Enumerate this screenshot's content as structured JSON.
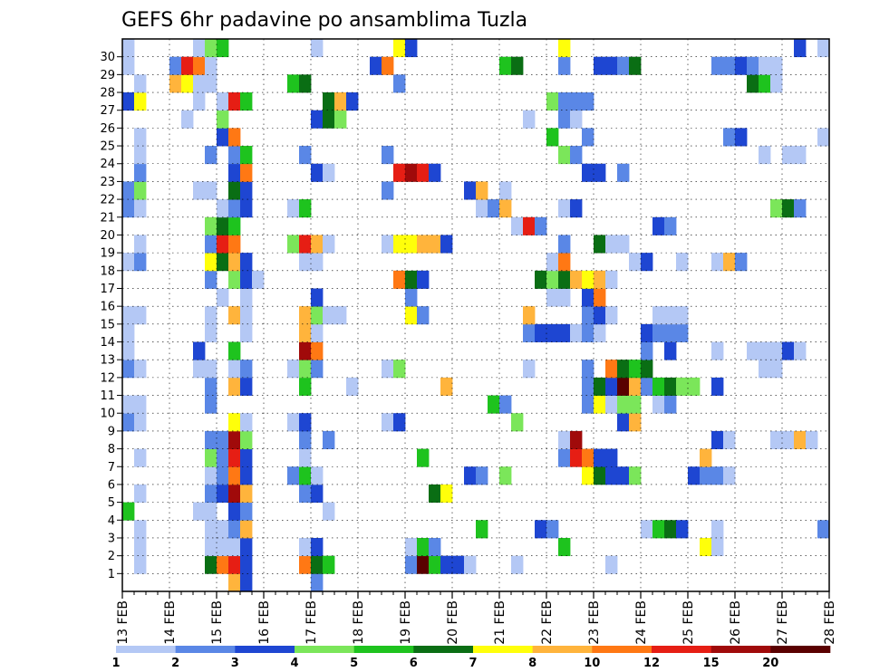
{
  "chart_data": {
    "type": "heatmap",
    "title": "GEFS 6hr padavine po ansamblima Tuzla",
    "xlabel": "",
    "ylabel": "",
    "x_tick_labels": [
      "13 FEB",
      "14 FEB",
      "15 FEB",
      "16 FEB",
      "17 FEB",
      "18 FEB",
      "19 FEB",
      "20 FEB",
      "21 FEB",
      "22 FEB",
      "23 FEB",
      "24 FEB",
      "25 FEB",
      "26 FEB",
      "27 FEB",
      "28 FEB"
    ],
    "x_steps_per_day": 4,
    "x_range_steps": [
      0,
      60
    ],
    "y_tick_labels": [
      1,
      2,
      3,
      4,
      5,
      6,
      7,
      8,
      9,
      10,
      11,
      12,
      13,
      14,
      15,
      16,
      17,
      18,
      19,
      20,
      21,
      22,
      23,
      24,
      25,
      26,
      27,
      28,
      29,
      30
    ],
    "grid": true,
    "colorbar": {
      "levels": [
        1,
        2,
        3,
        4,
        5,
        6,
        7,
        8,
        10,
        12,
        15,
        20
      ],
      "labels": [
        "1",
        "2",
        "3",
        "4",
        "5",
        "6",
        "7",
        "8",
        "10",
        "12",
        "15",
        "20"
      ],
      "colors": [
        "#b4c8f5",
        "#5a87e6",
        "#1e46d2",
        "#7be65a",
        "#1ec31e",
        "#0a6e14",
        "#ffff0a",
        "#ffb43c",
        "#ff7814",
        "#e61e14",
        "#a00a0a",
        "#5a0000"
      ]
    },
    "cells": [
      [
        1,
        "0 3:3 5:2 1 0 9:1 0 4:3 1 0 19:2 1 0 3:3 0 2:3 4:5 4:4 0 9:1 0 2:3 4:2 0 4:6 0 1:6 0 1:11 2:8 0 3:5 7:4 6:2 3:3 4:1 3:5 2:11 3:10 4:2 6:8 3:3"
      ],
      [
        2,
        "0 2:1 0 9:9 12:1 0 8:6 7:6 10:1 0 2:6 0 1:6 0 1:6 0 3:1 4:1 0 1:1 0 6:1 9:1 0 4:1 0 1:1 0 4:1 0 1:1 0 9:1 0 1:1 1 0 3:1 0 8:1 0 1:1 0 5:1"
      ],
      [
        3,
        "0 5:9 11:4 7:6 0 12:9 0 3:1 4:9 0 2:6 0 1:6 0 1:6 0 2:6 0 2:5 2:6 3:4 0 4:6 0 2:1 0 8:9 0 5:2 6:1"
      ],
      [
        4,
        "0 1:1 2:4 6:2 7:2 0 4:2 5:4 0 9:1 0 6:1 0 3:1 0 9:1 4:11 0 3:2 5:2 0 7:1 0 2:4 5:2 0 3:6 0 4:2 5:1 0 2:4 6:1 6:2 9:2 2:1 5:1 6:3 0 4:3 0 4:2 0 4:2 5:2 0 4:2 6:11 4:5 3:1 0 4:6 3:3 0 1:1"
      ],
      [
        5,
        "0 5:8 2:9 3:1 5:1 0 3:9 5:3 0 1:6 0 5:6 0 5:6 0 1:9 0 4:2 5:3 0 2:1 0 4:6 0 1:6 0 3:6 0 2:5 2:9 5:2 4:5 1:8 0 3:2 0 3:2 0 1:1 0 5:1 0 1:1 2:9 0 3:6 0 3:6 0 3:1 0 2:6"
      ],
      [
        6,
        "0 2:2 1 0 2:1 0 9:6 1 0 3:1 0 4:1 0 2:9 11:1 4:6 0 2:1 5:6 0 2:6 0 4:3 0 4:6 0 3:1 0 2:6 0 2:9 5:9 0 2:6 0 2:9 0 1:7 0 6:9 4:6 0 1:6"
      ],
      [
        7,
        "0 8:5 9:2 0 8:1 0 7:1 0 3:1 0 10:8 0 4:3 0 9:1 0 8:6 0 3:2 3:4 0 4:6 3:4 4:1 0 10:6 0 6:3 4:4 0 2:6 5:8 0 3:10 1 0 3:3 0 7:1"
      ],
      [
        8,
        "0 4:1 0 9:9 0 2:9 0 6:5 0 3:5 0 2:10 0 2:6 0 2:1 0 5:3 0 3:1 5:6 0 2:3 0 6:1 0 5:6 5:1 0 3:3 0 5:1 0 2:6 0 2:1"
      ],
      [
        9,
        "0 5:1 0 8:6 10:2 0 2:9 0 5:1 0 3:6 0 3:6 0 10:1 0 2:6 5:2 0 1:1 0 6:6 4:6 0 3:2 6:1 0 1:6 0 5:9 0 6:9 1 0 2:6 6:6 2:1 1 0 3:2"
      ],
      [
        10,
        "0 3:2 5:1 0 3:6 5:2 0 2:6 0 4:6 0 5:1 0 2:9 5:2 0 3:3 1 0 5:1 0 2:9 6:5 0 1:2 3:6 0 3:3 5:2 0 1:5 0 4:6 0 2:6"
      ],
      [
        11,
        "0 3:6 0 2:5 0 5:1 0 3:1 0 5:6 0 2:1 0 3:6 0 5:9 2:6 0 2:6 0 2:6 4:6 3:3 0 9:1 0 3:5 0 2:3 1 0 3:6 3:1 0 4:2 0 4:6 0 3:6"
      ],
      [
        12,
        "0 2:1 1 0 9:1 0 2:3 0 2:10 1 0 4:1 0 2:3 0 1:1 0 1:9 6:5 3:8 0 1:2 0 2:2 0 2:1 0 4:6 3:1 0 1:6 0 7:6 0 2:1 0 3:9 0 1:6"
      ],
      [
        13,
        "0 2:1 0 6:1 3:1 0 9:2 0 4:6 0 2:6 0 8:6 0 2:6 0 1:3 0 2:6 0 3:6 0 2:9 0 2:6 0 3:6 0 2:1 0 4:6 0 2:1 0 1:9 0 6:6 0 1:6 0 9:6 0 1:6"
      ],
      [
        14,
        "0 4:6 0 3:6 0 2:6 0 5:2 4:6 0 6:3 0 2:1 0 1:9 2:2 4:1 5:6 0 3:9 7:1 6:6 0 1:5 0 2:10 0 2:6 0 2:2 5:2 0 1:3 0 2:1"
      ],
      [
        15,
        "0 1:2 0 2:9 0 2:6 0 2:6 0 2:6 0 5:5 0 2:4 0 2:1 0 2:9 0 3:9 6:1 0 3:6 0 5:6 0 2:6 4:3 0 4:6 0 2:5 0 2:6 0 6:1 1 0 4:1 0 3:4 0 1:1"
      ],
      [
        16,
        "0 2:1 0 3:6 0 2:1 0 1:6 0 2:9 0 2:6 0 6:1 4:1 0 3:1 0 3:6 0 1:1 0 1:11 9:1 0 3:5 0 1:6"
      ],
      [
        17,
        "0 4:6 0 1:6 0 3:9 3:5 0 6:3 3:1 0 3:2 0 8:3 2:9 1 0 3:1 0 6:6 2:9 0 3:5 0 1:6 0 7:5 0 2:6 0 3:1 0 1:1 0 3:6 0 1:1 0 1:1 0 3:6"
      ],
      [
        18,
        "0 3:6 0 3:6 0 7:6 0 1:6 0 2:1 0 2:6 0 2:6 0 5:1 0 3:6 0 3:1 0 1:6 0 1:6 0 4:9 0 1:6 0 2:6 0 3:6 0 2:1 0 1:6 0 3:1 0 1:6 0 5:1 0 4:6 0 2:6"
      ],
      [
        19,
        "0 3:1 0 2:1 0 5:1 0 5:1 0 4:2 0 5:5 0 3:6 0 4:1 0 2:1 0 2:1 0 3:6 0 1:6 0 5:1 0 2:6 0 2:6 0 6:6 0 4:6 0 3:6"
      ],
      [
        20,
        "0 2:6 0 2:6 0 4:6 0 1:6 0 4:6 0 3:9 0 5:2 0 1:1 0 3:6 0 4:6 0 3:2 0 5:6 0 2:5"
      ],
      [
        21,
        "0 1:6 0 3:9 0 1:6 0 5:1 0 4:6 0 4:6 0 6:6 0 1:6"
      ],
      [
        22,
        "0 1:1 0 4:6 0 2:6 0 3:6 0 5:6 0 1:6 0 3:6 0 8:6 0 2:6"
      ],
      [
        23,
        "0 2:6 0 2:6 0 4:6 0 8:6 0 2:1 0 5:6"
      ],
      [
        24,
        "0 4:6 0 3:6 0 2:6 0 5:6 0 1:1 0 3:6 0 4:6 0 1:6"
      ],
      [
        25,
        "0 1:6 0 2:6 0 6:6 0 5:6"
      ],
      [
        26,
        "0 4:6 0 2:6 0 1:1 0 6:6 0 2:6"
      ],
      [
        27,
        "0 2:6 0 3:6 0 6:1 0 4:6"
      ],
      [
        28,
        "0 1:6 0 4:6 0 2:6 0 6:6"
      ],
      [
        29,
        "0 2:1 0 4:6 0 3:6"
      ],
      [
        30,
        "0 1:6 0 2:6"
      ]
    ]
  }
}
